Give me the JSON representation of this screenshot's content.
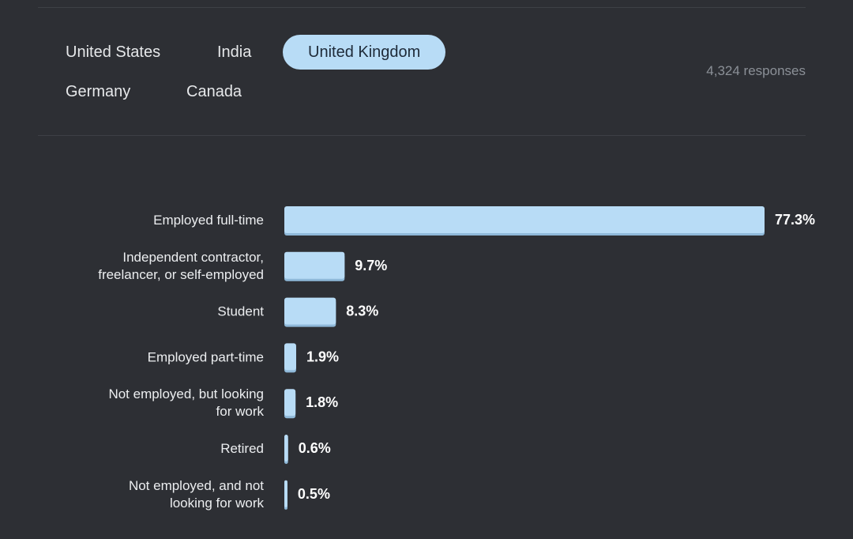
{
  "tabs": {
    "items": [
      {
        "label": "United States",
        "active": false
      },
      {
        "label": "India",
        "active": false
      },
      {
        "label": "United Kingdom",
        "active": true
      },
      {
        "label": "Germany",
        "active": false
      },
      {
        "label": "Canada",
        "active": false
      }
    ]
  },
  "responses_label": "4,324 responses",
  "colors": {
    "background": "#2d2f34",
    "bar": "#b8dcf6",
    "bar_shadow": "#8fb9d9",
    "active_tab": "#b8dcf6"
  },
  "chart_data": {
    "type": "bar",
    "orientation": "horizontal",
    "title": "",
    "xlabel": "",
    "ylabel": "",
    "categories": [
      [
        "Employed full-time"
      ],
      [
        "Independent contractor,",
        "freelancer, or self-employed"
      ],
      [
        "Student"
      ],
      [
        "Employed part-time"
      ],
      [
        "Not employed, but looking",
        "for work"
      ],
      [
        "Retired"
      ],
      [
        "Not employed, and not",
        "looking for work"
      ]
    ],
    "values": [
      77.3,
      9.7,
      8.3,
      1.9,
      1.8,
      0.6,
      0.5
    ],
    "value_labels": [
      "77.3%",
      "9.7%",
      "8.3%",
      "1.9%",
      "1.8%",
      "0.6%",
      "0.5%"
    ],
    "xlim": [
      0,
      77.3
    ],
    "grid": false,
    "legend": "none"
  }
}
